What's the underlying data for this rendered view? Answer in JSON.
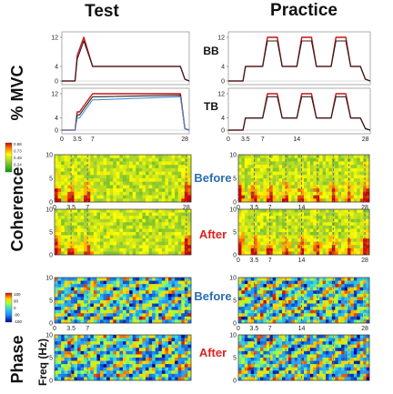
{
  "figure": {
    "col_headers": [
      "Test",
      "Practice"
    ],
    "row_labels": {
      "mvc": "% MVC",
      "coherence": "Coherence",
      "phase": "Phase",
      "freq": "Freq (Hz)"
    },
    "muscles": [
      "BB",
      "TB"
    ],
    "conditions": [
      "Before",
      "After",
      "Before",
      "After"
    ],
    "colors": {
      "before": "#2b6cb0",
      "after": "#e02020",
      "trace_red": "#cc1111",
      "trace_dark": "#222222",
      "trace_blue": "#4a90d9",
      "dashed": "#6a6a8a"
    },
    "colorbars": {
      "coherence": {
        "ticks": [
          "0.98",
          "0.73",
          "0.49",
          "0.24",
          "0"
        ]
      },
      "phase": {
        "ticks": [
          "180",
          "90",
          "0",
          "-90",
          "-180"
        ]
      }
    }
  },
  "chart_data": [
    {
      "type": "line",
      "panel": "test-bb",
      "x": [
        0,
        3,
        3.5,
        5,
        7,
        27,
        28,
        29
      ],
      "series": [
        {
          "values": [
            0,
            0,
            7,
            12,
            4,
            4,
            0.5,
            0
          ]
        },
        {
          "values": [
            0,
            0,
            6,
            11,
            4,
            4,
            0.5,
            0
          ]
        }
      ],
      "ylim": [
        0,
        12
      ],
      "yticks": [
        "12",
        "4",
        "0"
      ]
    },
    {
      "type": "line",
      "panel": "test-tb",
      "x": [
        0,
        3,
        3.5,
        4,
        7,
        8,
        27,
        28,
        29
      ],
      "series": [
        {
          "values": [
            0,
            0,
            6,
            6,
            12,
            12,
            12,
            0.5,
            0
          ]
        },
        {
          "values": [
            0,
            0,
            5,
            5,
            11,
            11,
            11.5,
            0.5,
            0
          ]
        },
        {
          "values": [
            0,
            0,
            4,
            4,
            10,
            10,
            11,
            0.5,
            0
          ]
        }
      ],
      "ylim": [
        0,
        12
      ],
      "yticks": [
        "12",
        "4",
        "0"
      ],
      "xticks": [
        "0",
        "3.5",
        "7",
        "28"
      ]
    },
    {
      "type": "line",
      "panel": "practice-bb",
      "x": [
        0,
        3,
        3.5,
        7,
        8,
        10,
        11,
        14,
        15,
        17,
        18,
        21,
        22,
        24,
        25,
        27,
        28,
        29
      ],
      "series": [
        {
          "values": [
            0,
            0,
            4,
            4,
            12,
            12,
            4,
            4,
            12,
            12,
            4,
            4,
            12,
            12,
            4,
            4,
            0.5,
            0
          ]
        },
        {
          "values": [
            0,
            0,
            4,
            4,
            11,
            11,
            4,
            4,
            11,
            11,
            4,
            4,
            11,
            11,
            4,
            4,
            0.5,
            0
          ]
        }
      ],
      "ylim": [
        0,
        12
      ],
      "yticks": [
        "12",
        "4",
        "0"
      ]
    },
    {
      "type": "line",
      "panel": "practice-tb",
      "x": [
        0,
        3,
        3.5,
        7,
        8,
        10,
        11,
        14,
        15,
        17,
        18,
        21,
        22,
        24,
        25,
        27,
        28,
        29
      ],
      "series": [
        {
          "values": [
            0,
            0,
            4,
            4,
            12,
            12,
            4,
            4,
            12,
            12,
            4,
            4,
            12,
            12,
            4,
            4,
            0.5,
            0
          ]
        },
        {
          "values": [
            0,
            0,
            4,
            4,
            11,
            11,
            4,
            4,
            11,
            11,
            4,
            4,
            11,
            11,
            4,
            4,
            0.5,
            0
          ]
        }
      ],
      "ylim": [
        0,
        12
      ],
      "yticks": [
        "12",
        "4",
        "0"
      ],
      "xticks": [
        "0",
        "3.5",
        "7",
        "14",
        "28"
      ]
    },
    {
      "type": "heatmap",
      "panel": "test-coherence-before",
      "measure": "coherence",
      "ylim": [
        0,
        10
      ],
      "yticks": [
        "10",
        "5",
        "0"
      ],
      "xticks": [
        "0",
        "3.5",
        "7",
        "28"
      ],
      "markers": [
        0,
        3.5,
        7,
        28
      ]
    },
    {
      "type": "heatmap",
      "panel": "test-coherence-after",
      "measure": "coherence",
      "ylim": [
        0,
        10
      ],
      "yticks": [
        "10",
        "5",
        "0"
      ],
      "markers": [
        0,
        3.5,
        7,
        28
      ]
    },
    {
      "type": "heatmap",
      "panel": "practice-coherence-before",
      "measure": "coherence",
      "ylim": [
        0,
        10
      ],
      "yticks": [
        "10",
        "5",
        "0"
      ],
      "xticks": [
        "0",
        "3.5",
        "7",
        "14",
        "28"
      ],
      "markers": [
        0,
        3.5,
        7,
        10.5,
        14,
        17.5,
        21,
        24.5,
        28
      ]
    },
    {
      "type": "heatmap",
      "panel": "practice-coherence-after",
      "measure": "coherence",
      "ylim": [
        0,
        10
      ],
      "yticks": [
        "10",
        "5",
        "0"
      ],
      "xticks": [
        "0",
        "3.5",
        "7",
        "14",
        "28"
      ],
      "markers": [
        0,
        3.5,
        7,
        10.5,
        14,
        17.5,
        21,
        24.5,
        28
      ]
    },
    {
      "type": "heatmap",
      "panel": "test-phase-before",
      "measure": "phase",
      "ylim": [
        0,
        10
      ],
      "yticks": [
        "10",
        "5",
        "0"
      ],
      "xticks": [
        "0",
        "3.5",
        "7"
      ],
      "markers": [
        0,
        3.5,
        7,
        28
      ]
    },
    {
      "type": "heatmap",
      "panel": "test-phase-after",
      "measure": "phase",
      "ylim": [
        0,
        10
      ],
      "yticks": [
        "10",
        "5",
        "0"
      ],
      "markers": [
        0,
        3.5,
        7,
        28
      ]
    },
    {
      "type": "heatmap",
      "panel": "practice-phase-before",
      "measure": "phase",
      "ylim": [
        0,
        10
      ],
      "yticks": [
        "10",
        "5",
        "0"
      ],
      "xticks": [
        "0",
        "3.5",
        "7",
        "14",
        "28"
      ],
      "markers": [
        0,
        3.5,
        7,
        10.5,
        14,
        17.5,
        21,
        24.5,
        28
      ]
    },
    {
      "type": "heatmap",
      "panel": "practice-phase-after",
      "measure": "phase",
      "ylim": [
        0,
        10
      ],
      "yticks": [
        "10",
        "5",
        "0"
      ],
      "markers": [
        0,
        3.5,
        7,
        10.5,
        14,
        17.5,
        21,
        24.5,
        28
      ]
    }
  ]
}
